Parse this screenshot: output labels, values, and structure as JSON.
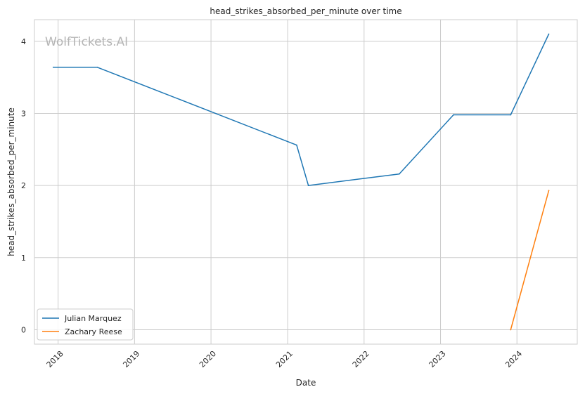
{
  "chart_data": {
    "type": "line",
    "title": "head_strikes_absorbed_per_minute over time",
    "xlabel": "Date",
    "ylabel": "head_strikes_absorbed_per_minute",
    "watermark": "WolfTickets.AI",
    "xlim": [
      "2017-09-10",
      "2024-10-15"
    ],
    "ylim": [
      -0.2,
      4.3
    ],
    "x_ticks": [
      "2018",
      "2019",
      "2020",
      "2021",
      "2022",
      "2023",
      "2024"
    ],
    "x_tick_dates": [
      "2018-01-01",
      "2019-01-01",
      "2020-01-01",
      "2021-01-01",
      "2022-01-01",
      "2023-01-01",
      "2024-01-01"
    ],
    "y_ticks": [
      0,
      1,
      2,
      3,
      4
    ],
    "grid": true,
    "legend_position": "lower-left",
    "series": [
      {
        "name": "Julian Marquez",
        "color": "#1f77b4",
        "points": [
          {
            "x": "2017-12-09",
            "y": 3.64
          },
          {
            "x": "2018-07-07",
            "y": 3.64
          },
          {
            "x": "2021-02-13",
            "y": 2.56
          },
          {
            "x": "2021-04-10",
            "y": 2.0
          },
          {
            "x": "2022-06-18",
            "y": 2.16
          },
          {
            "x": "2023-03-04",
            "y": 2.98
          },
          {
            "x": "2023-12-02",
            "y": 2.98
          },
          {
            "x": "2024-06-01",
            "y": 4.1
          }
        ]
      },
      {
        "name": "Zachary Reese",
        "color": "#ff7f0e",
        "points": [
          {
            "x": "2023-12-02",
            "y": 0.0
          },
          {
            "x": "2024-06-01",
            "y": 1.93
          }
        ]
      }
    ]
  }
}
